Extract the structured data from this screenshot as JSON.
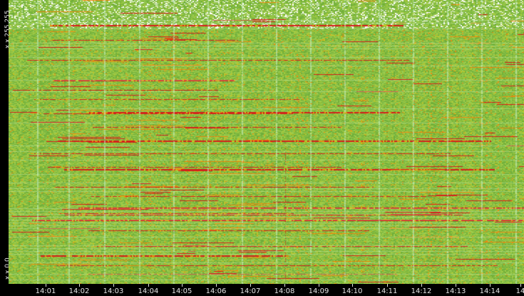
{
  "chart_data": {
    "type": "heatmap",
    "title": "",
    "xlabel": "",
    "ylabel": "",
    "y_tick_labels": [
      "x.x.255.255",
      "x.x.0.0"
    ],
    "x_tick_labels": [
      "14:01",
      "14:02",
      "14:03",
      "14:04",
      "14:05",
      "14:06",
      "14:07",
      "14:08",
      "14:09",
      "14:10",
      "14:11",
      "14:12",
      "14:13",
      "14:14",
      "14"
    ],
    "grid": true,
    "colors": {
      "background": "#000000",
      "low": "#7fb840",
      "mid": "#c8c020",
      "high": "#e88a10",
      "peak": "#d4201a",
      "gridline": "#c8f0c8",
      "sparse": "#ffffff"
    }
  }
}
